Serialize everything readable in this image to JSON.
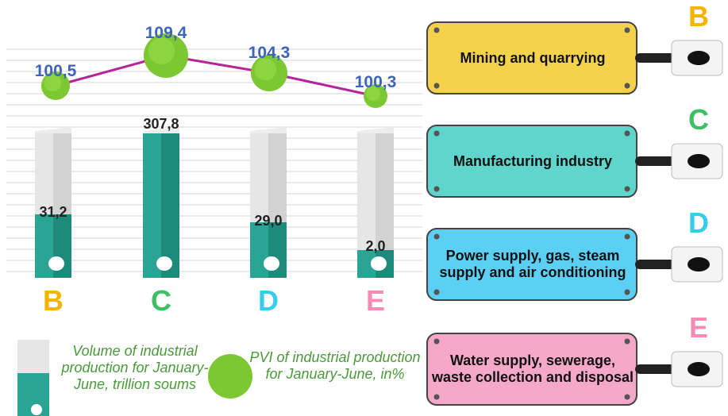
{
  "sectors": [
    {
      "letter": "B",
      "volume": "31,2",
      "pvi": "100,5",
      "name": "Mining and quarrying"
    },
    {
      "letter": "C",
      "volume": "307,8",
      "pvi": "109,4",
      "name": "Manufacturing industry"
    },
    {
      "letter": "D",
      "volume": "29,0",
      "pvi": "104,3",
      "name": "Power supply, gas, steam supply and air conditioning"
    },
    {
      "letter": "E",
      "volume": "2,0",
      "pvi": "100,3",
      "name": "Water supply, sewerage, waste collection and disposal"
    }
  ],
  "legend": {
    "volume": "Volume of industrial production for January-June, trillion soums",
    "pvi": "PVI of industrial production for January-June, in%"
  }
}
